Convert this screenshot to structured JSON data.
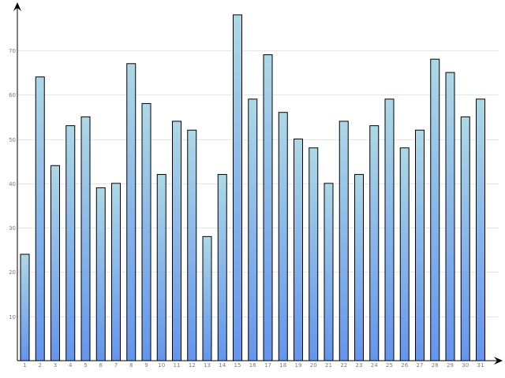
{
  "chart_data": {
    "type": "bar",
    "categories": [
      "1",
      "2",
      "3",
      "4",
      "5",
      "6",
      "7",
      "8",
      "9",
      "10",
      "11",
      "12",
      "13",
      "14",
      "15",
      "16",
      "17",
      "18",
      "19",
      "20",
      "21",
      "22",
      "23",
      "24",
      "25",
      "26",
      "27",
      "28",
      "29",
      "30",
      "31"
    ],
    "values": [
      24,
      64,
      44,
      53,
      55,
      39,
      40,
      67,
      58,
      42,
      54,
      52,
      28,
      42,
      78,
      59,
      69,
      56,
      50,
      48,
      40,
      54,
      42,
      53,
      59,
      48,
      52,
      68,
      65,
      55,
      59
    ],
    "yticks": [
      "10",
      "20",
      "30",
      "40",
      "50",
      "60",
      "70"
    ],
    "ylim": [
      0,
      80
    ],
    "grid": true,
    "legend": "none",
    "colors": {
      "bar_top": "#add8e6",
      "bar_bottom": "#6495ed",
      "grid": "#e6e6e6",
      "axis": "#000000"
    }
  }
}
